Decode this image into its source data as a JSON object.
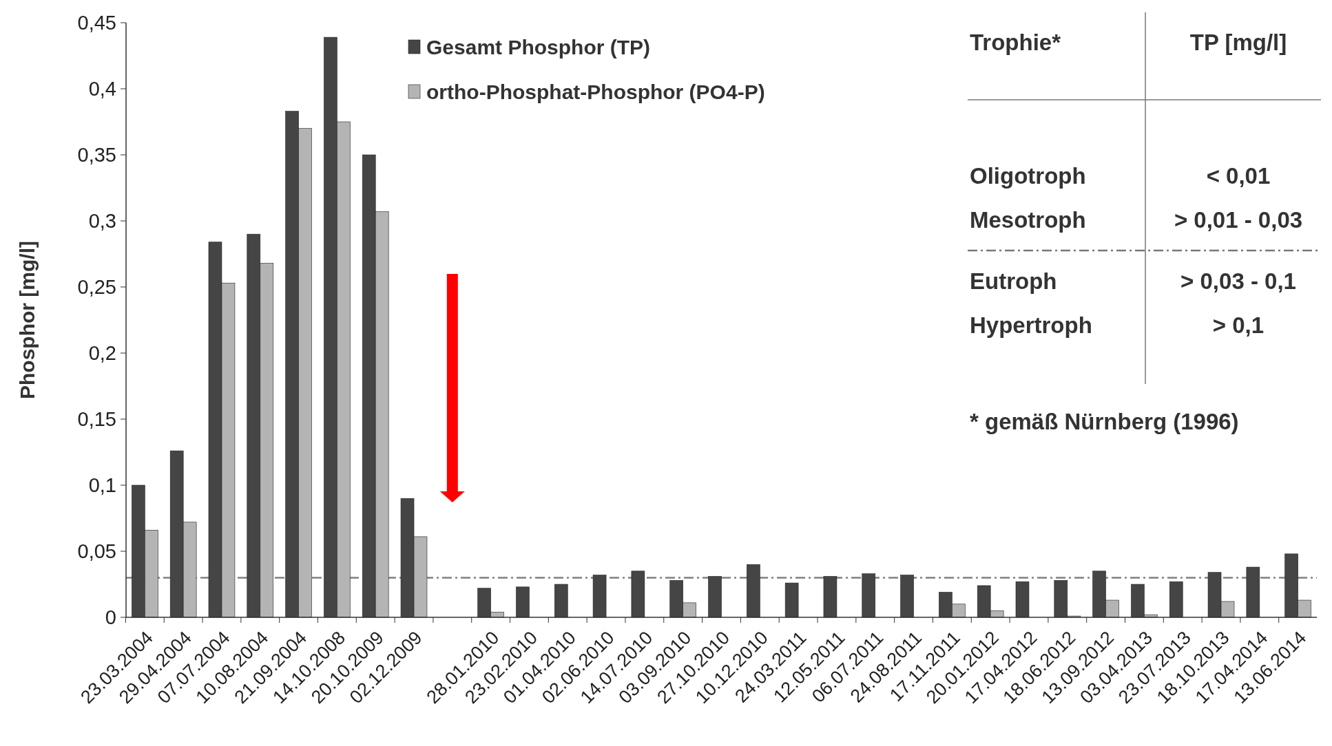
{
  "chart_data": {
    "type": "bar",
    "ylabel": "Phosphor [mg/l]",
    "categories": [
      "23.03.2004",
      "29.04.2004",
      "07.07.2004",
      "10.08.2004",
      "21.09.2004",
      "14.10.2008",
      "20.10.2009",
      "02.12.2009",
      null,
      "28.01.2010",
      "23.02.2010",
      "01.04.2010",
      "02.06.2010",
      "14.07.2010",
      "03.09.2010",
      "27.10.2010",
      "10.12.2010",
      "24.03.2011",
      "12.05.2011",
      "06.07.2011",
      "24.08.2011",
      "17.11.2011",
      "20.01.2012",
      "17.04.2012",
      "18.06.2012",
      "13.09.2012",
      "03.04.2013",
      "23.07.2013",
      "18.10.2013",
      "17.04.2014",
      "13.06.2014"
    ],
    "series": [
      {
        "name": "Gesamt Phosphor (TP)",
        "color": "#454545",
        "values": [
          0.1,
          0.126,
          0.284,
          0.29,
          0.383,
          0.439,
          0.35,
          0.09,
          null,
          0.022,
          0.023,
          0.025,
          0.032,
          0.035,
          0.028,
          0.031,
          0.04,
          0.026,
          0.031,
          0.033,
          0.032,
          0.019,
          0.024,
          0.027,
          0.028,
          0.035,
          0.025,
          0.027,
          0.034,
          0.038,
          0.048
        ]
      },
      {
        "name": "ortho-Phosphat-Phosphor (PO4-P)",
        "color": "#b4b4b4",
        "values": [
          0.066,
          0.072,
          0.253,
          0.268,
          0.37,
          0.375,
          0.307,
          0.061,
          null,
          0.004,
          0,
          0,
          0,
          0,
          0.011,
          0,
          0,
          0,
          0,
          0,
          0,
          0.01,
          0.005,
          0,
          0.001,
          0.013,
          0.002,
          0,
          0.012,
          0,
          0.013
        ]
      }
    ],
    "ylim": [
      0,
      0.45
    ],
    "yticks": [
      0,
      {
        "value": 0.05,
        "label": "0,05"
      },
      {
        "value": 0.1,
        "label": "0,1"
      },
      {
        "value": 0.15,
        "label": "0,15"
      },
      {
        "value": 0.2,
        "label": "0,2"
      },
      {
        "value": 0.25,
        "label": "0,25"
      },
      {
        "value": 0.3,
        "label": "0,3"
      },
      {
        "value": 0.35,
        "label": "0,35"
      },
      {
        "value": 0.4,
        "label": "0,4"
      },
      {
        "value": 0.45,
        "label": "0,45"
      }
    ],
    "ref_lines": [
      {
        "axis": "y",
        "value": 0.03,
        "color": "#808080",
        "line_style": "dashdot"
      }
    ],
    "legend": "top",
    "grid": false,
    "annotations": [
      "Trophie*",
      "TP [mg/l]",
      "Oligotroph",
      "< 0,01",
      "Mesotroph",
      "> 0,01 - 0,03",
      "Eutroph",
      "> 0,03 - 0,1",
      "Hypertroph",
      "> 0,1",
      "* gemäß Nürnberg (1996)"
    ]
  }
}
